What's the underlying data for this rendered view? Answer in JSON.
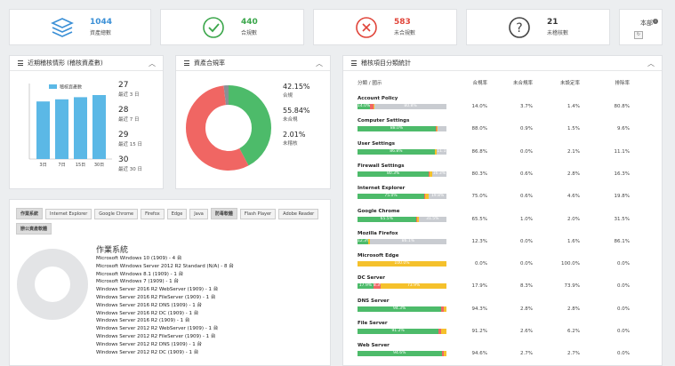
{
  "stats": [
    {
      "value": "1044",
      "label": "資產總數",
      "color": "#3a8fd6",
      "icon": "layers-icon"
    },
    {
      "value": "440",
      "label": "合規數",
      "color": "#3aa64a",
      "icon": "check-circle-icon"
    },
    {
      "value": "583",
      "label": "未合規數",
      "color": "#e0453a",
      "icon": "x-circle-icon"
    },
    {
      "value": "21",
      "label": "未稽核數",
      "color": "#333333",
      "icon": "question-circle-icon"
    }
  ],
  "scope": {
    "label": "本部"
  },
  "trend": {
    "title": "近期稽核情形 (稽核資產數)",
    "legend": "稽核資產數",
    "chart_data": {
      "type": "bar",
      "categories": [
        "3日",
        "7日",
        "15日",
        "30日"
      ],
      "values": [
        27,
        28,
        29,
        30
      ],
      "ylim": [
        0,
        30
      ]
    },
    "rows": [
      {
        "value": "27",
        "label": "最近 3 日"
      },
      {
        "value": "28",
        "label": "最近 7 日"
      },
      {
        "value": "29",
        "label": "最近 15 日"
      },
      {
        "value": "30",
        "label": "最近 30 日"
      }
    ]
  },
  "compliance": {
    "title": "資產合規率",
    "chart_data": {
      "type": "pie",
      "categories": [
        "合規",
        "未合規",
        "未稽核"
      ],
      "values": [
        42.15,
        55.84,
        2.01
      ],
      "colors": [
        "#4dbb6a",
        "#f06663",
        "#8a8f96"
      ]
    },
    "rows": [
      {
        "value": "42.15%",
        "label": "合規"
      },
      {
        "value": "55.84%",
        "label": "未合規"
      },
      {
        "value": "2.01%",
        "label": "未稽核"
      }
    ]
  },
  "table": {
    "title": "稽核項目分類統計",
    "headers": [
      "分類 / 國示",
      "合規率",
      "未合規率",
      "未設定率",
      "排除率"
    ],
    "rows": [
      {
        "name": "Account Policy",
        "segs": [
          14.0,
          3.7,
          1.4,
          80.8
        ],
        "labels": [
          "14.0%",
          "",
          "",
          "80.8%"
        ],
        "vals": [
          "14.0%",
          "3.7%",
          "1.4%",
          "80.8%"
        ]
      },
      {
        "name": "Computer Settings",
        "segs": [
          88.0,
          0.9,
          1.5,
          9.6
        ],
        "labels": [
          "88.0%",
          "",
          "",
          ""
        ],
        "vals": [
          "88.0%",
          "0.9%",
          "1.5%",
          "9.6%"
        ]
      },
      {
        "name": "User Settings",
        "segs": [
          86.8,
          0.0,
          2.1,
          11.1
        ],
        "labels": [
          "86.8%",
          "",
          "",
          "11.1"
        ],
        "vals": [
          "86.8%",
          "0.0%",
          "2.1%",
          "11.1%"
        ]
      },
      {
        "name": "Firewall Settings",
        "segs": [
          80.3,
          0.6,
          2.8,
          16.3
        ],
        "labels": [
          "80.3%",
          "",
          "",
          "16.3%"
        ],
        "vals": [
          "80.3%",
          "0.6%",
          "2.8%",
          "16.3%"
        ]
      },
      {
        "name": "Internet Explorer",
        "segs": [
          75.0,
          0.6,
          4.6,
          19.8
        ],
        "labels": [
          "75.0%",
          "",
          "",
          "19.8%"
        ],
        "vals": [
          "75.0%",
          "0.6%",
          "4.6%",
          "19.8%"
        ]
      },
      {
        "name": "Google Chrome",
        "segs": [
          65.5,
          1.0,
          2.0,
          31.5
        ],
        "labels": [
          "65.5%",
          "",
          "",
          "31.5%"
        ],
        "vals": [
          "65.5%",
          "1.0%",
          "2.0%",
          "31.5%"
        ]
      },
      {
        "name": "Mozilla Firefox",
        "segs": [
          12.3,
          0.0,
          1.6,
          86.1
        ],
        "labels": [
          "12.3%",
          "",
          "",
          "86.1%"
        ],
        "vals": [
          "12.3%",
          "0.0%",
          "1.6%",
          "86.1%"
        ]
      },
      {
        "name": "Microsoft Edge",
        "segs": [
          0.0,
          0.0,
          100.0,
          0.0
        ],
        "labels": [
          "",
          "",
          "100.0%",
          ""
        ],
        "vals": [
          "0.0%",
          "0.0%",
          "100.0%",
          "0.0%"
        ]
      },
      {
        "name": "DC Server",
        "segs": [
          17.9,
          8.3,
          73.9,
          0.0
        ],
        "labels": [
          "17.9%",
          "8.3%",
          "73.9%",
          ""
        ],
        "vals": [
          "17.9%",
          "8.3%",
          "73.9%",
          "0.0%"
        ]
      },
      {
        "name": "DNS Server",
        "segs": [
          94.3,
          2.8,
          2.8,
          0.0
        ],
        "labels": [
          "94.3%",
          "",
          "",
          ""
        ],
        "vals": [
          "94.3%",
          "2.8%",
          "2.8%",
          "0.0%"
        ]
      },
      {
        "name": "File Server",
        "segs": [
          91.2,
          2.6,
          6.2,
          0.0
        ],
        "labels": [
          "91.2%",
          "",
          "",
          ""
        ],
        "vals": [
          "91.2%",
          "2.6%",
          "6.2%",
          "0.0%"
        ]
      },
      {
        "name": "Web Server",
        "segs": [
          94.6,
          2.7,
          2.7,
          0.0
        ],
        "labels": [
          "94.6%",
          "",
          "",
          ""
        ],
        "vals": [
          "94.6%",
          "2.7%",
          "2.7%",
          "0.0%"
        ]
      }
    ],
    "seg_colors": [
      "#4dbb6a",
      "#f06663",
      "#f5c12c",
      "#c9ccd1"
    ]
  },
  "os": {
    "tabs": [
      {
        "label": "作業系統",
        "active": true
      },
      {
        "label": "Internet Explorer",
        "active": false
      },
      {
        "label": "Google Chrome",
        "active": false
      },
      {
        "label": "Firefox",
        "active": false
      },
      {
        "label": "Edge",
        "active": false
      },
      {
        "label": "Java",
        "active": false
      },
      {
        "label": "防毒軟體",
        "active": true
      },
      {
        "label": "Flash Player",
        "active": false
      },
      {
        "label": "Adobe Reader",
        "active": false
      },
      {
        "label": "辦公資產軟體",
        "active": true
      }
    ],
    "section_title": "作業系統",
    "items": [
      "Microsoft Windows 10 (1909) - 4 台",
      "Microsoft Windows Server 2012 R2 Standard (N/A) - 8 台",
      "Microsoft Windows 8.1 (1909) - 1 台",
      "Microsoft Windows 7 (1909) - 1 台",
      "Windows Server 2016 R2 WebServer (1909) - 1 台",
      "Windows Server 2016 R2 FileServer (1909) - 1 台",
      "Windows Server 2016 R2 DNS (1909) - 1 台",
      "Windows Server 2016 R2 DC (1909) - 1 台",
      "Windows Server 2016 R2 (1909) - 1 台",
      "Windows Server 2012 R2 WebServer (1909) - 1 台",
      "Windows Server 2012 R2 FileServer (1909) - 1 台",
      "Windows Server 2012 R2 DNS (1909) - 1 台",
      "Windows Server 2012 R2 DC (1909) - 1 台"
    ]
  }
}
